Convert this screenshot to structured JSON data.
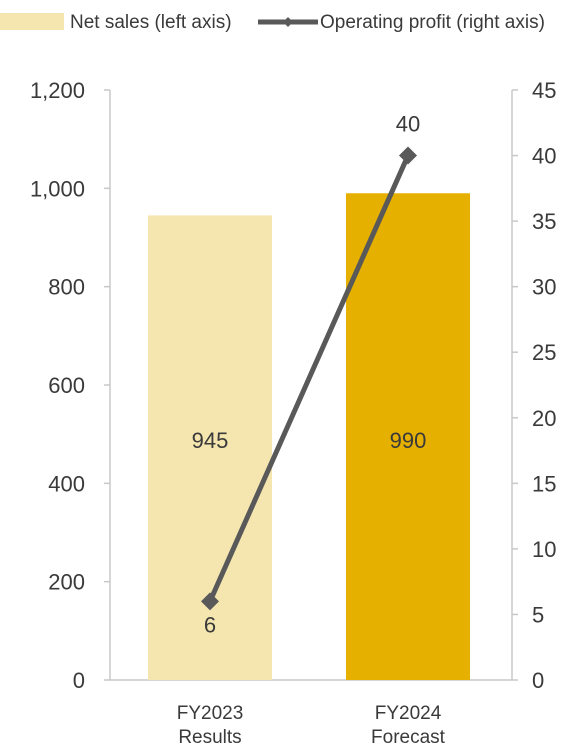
{
  "chart_data": {
    "type": "bar+line",
    "categories": [
      [
        "FY2023",
        "Results"
      ],
      [
        "FY2024",
        "Forecast"
      ]
    ],
    "series": [
      {
        "name": "Net sales (left axis)",
        "type": "bar",
        "axis": "left",
        "values": [
          945,
          990
        ],
        "colors": [
          "#f5e6b0",
          "#e6b000"
        ]
      },
      {
        "name": "Operating profit (right axis)",
        "type": "line",
        "axis": "right",
        "values": [
          6,
          40
        ],
        "color": "#595959"
      }
    ],
    "left_axis": {
      "ylim": [
        0,
        1200
      ],
      "ticks": [
        0,
        200,
        400,
        600,
        800,
        1000,
        1200
      ],
      "tick_labels": [
        "0",
        "200",
        "400",
        "600",
        "800",
        "1,000",
        "1,200"
      ]
    },
    "right_axis": {
      "ylim": [
        0,
        45
      ],
      "ticks": [
        0,
        5,
        10,
        15,
        20,
        25,
        30,
        35,
        40,
        45
      ],
      "tick_labels": [
        "0",
        "5",
        "10",
        "15",
        "20",
        "25",
        "30",
        "35",
        "40",
        "45"
      ]
    },
    "bar_labels": [
      "945",
      "990"
    ],
    "line_labels": [
      "6",
      "40"
    ],
    "legend": {
      "position": "top",
      "entries": [
        "Net sales (left axis)",
        "Operating profit (right axis)"
      ]
    },
    "grid": false
  }
}
